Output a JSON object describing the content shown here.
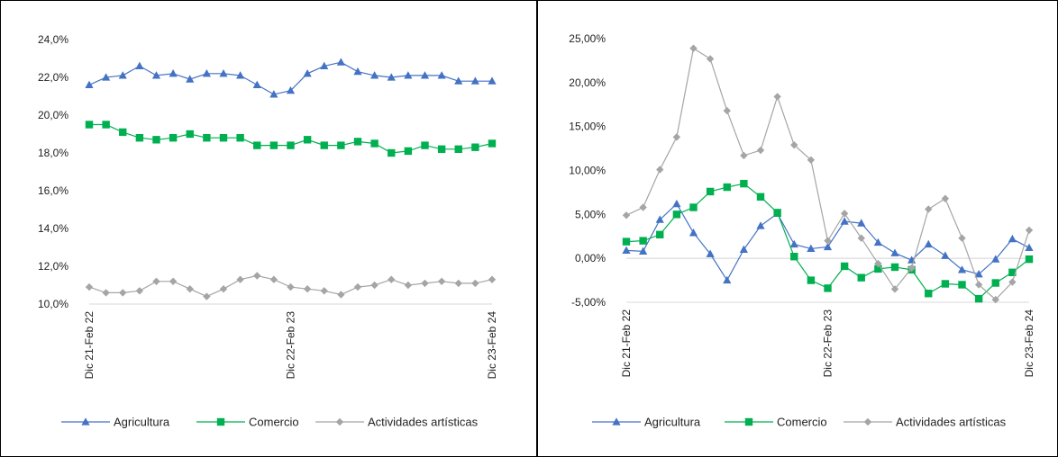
{
  "chart_data": [
    {
      "type": "line",
      "x_labels_all": [
        "Dic 21-Feb 22",
        "",
        "",
        "",
        "",
        "",
        "",
        "",
        "",
        "",
        "",
        "",
        "Dic 22-Feb 23",
        "",
        "",
        "",
        "",
        "",
        "",
        "",
        "",
        "",
        "",
        "",
        "Dic 23-Feb 24"
      ],
      "ylim": [
        10,
        24
      ],
      "y_ticks": [
        "10,0%",
        "12,0%",
        "14,0%",
        "16,0%",
        "18,0%",
        "20,0%",
        "22,0%",
        "24,0%"
      ],
      "y_tick_values": [
        10,
        12,
        14,
        16,
        18,
        20,
        22,
        24
      ],
      "grid": false,
      "legend_position": "bottom",
      "series": [
        {
          "name": "Agricultura",
          "color": "#4472c4",
          "marker": "triangle",
          "values": [
            21.6,
            22.0,
            22.1,
            22.6,
            22.1,
            22.2,
            21.9,
            22.2,
            22.2,
            22.1,
            21.6,
            21.1,
            21.3,
            22.2,
            22.6,
            22.8,
            22.3,
            22.1,
            22.0,
            22.1,
            22.1,
            22.1,
            21.8,
            21.8,
            21.8
          ]
        },
        {
          "name": "Comercio",
          "color": "#00b050",
          "marker": "square",
          "values": [
            19.5,
            19.5,
            19.1,
            18.8,
            18.7,
            18.8,
            19.0,
            18.8,
            18.8,
            18.8,
            18.4,
            18.4,
            18.4,
            18.7,
            18.4,
            18.4,
            18.6,
            18.5,
            18.0,
            18.1,
            18.4,
            18.2,
            18.2,
            18.3,
            18.5
          ]
        },
        {
          "name": "Actividades artísticas",
          "color": "#a5a5a5",
          "marker": "diamond",
          "values": [
            10.9,
            10.6,
            10.6,
            10.7,
            11.2,
            11.2,
            10.8,
            10.4,
            10.8,
            11.3,
            11.5,
            11.3,
            10.9,
            10.8,
            10.7,
            10.5,
            10.9,
            11.0,
            11.3,
            11.0,
            11.1,
            11.2,
            11.1,
            11.1,
            11.3
          ]
        }
      ]
    },
    {
      "type": "line",
      "x_labels_all": [
        "Dic 21-Feb 22",
        "",
        "",
        "",
        "",
        "",
        "",
        "",
        "",
        "",
        "",
        "",
        "Dic 22-Feb 23",
        "",
        "",
        "",
        "",
        "",
        "",
        "",
        "",
        "",
        "",
        "",
        "Dic 23-Feb 24"
      ],
      "ylim": [
        -5,
        25
      ],
      "y_ticks": [
        "-5,00%",
        "0,00%",
        "5,00%",
        "10,00%",
        "15,00%",
        "20,00%",
        "25,00%"
      ],
      "y_tick_values": [
        -5,
        0,
        5,
        10,
        15,
        20,
        25
      ],
      "grid": false,
      "zero_line": true,
      "legend_position": "bottom",
      "series": [
        {
          "name": "Agricultura",
          "color": "#4472c4",
          "marker": "triangle",
          "values": [
            0.9,
            0.8,
            4.4,
            6.2,
            2.9,
            0.5,
            -2.5,
            1.0,
            3.7,
            5.1,
            1.6,
            1.1,
            1.3,
            4.2,
            4.0,
            1.8,
            0.6,
            -0.2,
            1.6,
            0.3,
            -1.3,
            -1.8,
            -0.1,
            2.2,
            1.2
          ]
        },
        {
          "name": "Comercio",
          "color": "#00b050",
          "marker": "square",
          "values": [
            1.9,
            2.0,
            2.7,
            5.0,
            5.8,
            7.6,
            8.1,
            8.5,
            7.0,
            5.2,
            0.2,
            -2.5,
            -3.4,
            -0.9,
            -2.2,
            -1.2,
            -1.0,
            -1.3,
            -4.0,
            -2.9,
            -3.0,
            -4.6,
            -2.8,
            -1.6,
            -0.1
          ]
        },
        {
          "name": "Actividades artísticas",
          "color": "#a5a5a5",
          "marker": "diamond",
          "values": [
            4.9,
            5.8,
            10.1,
            13.8,
            23.9,
            22.7,
            16.8,
            11.7,
            12.3,
            18.4,
            12.9,
            11.2,
            2.0,
            5.1,
            2.3,
            -0.6,
            -3.5,
            -1.1,
            5.6,
            6.8,
            2.3,
            -3.0,
            -4.7,
            -2.7,
            3.2
          ]
        }
      ]
    }
  ]
}
